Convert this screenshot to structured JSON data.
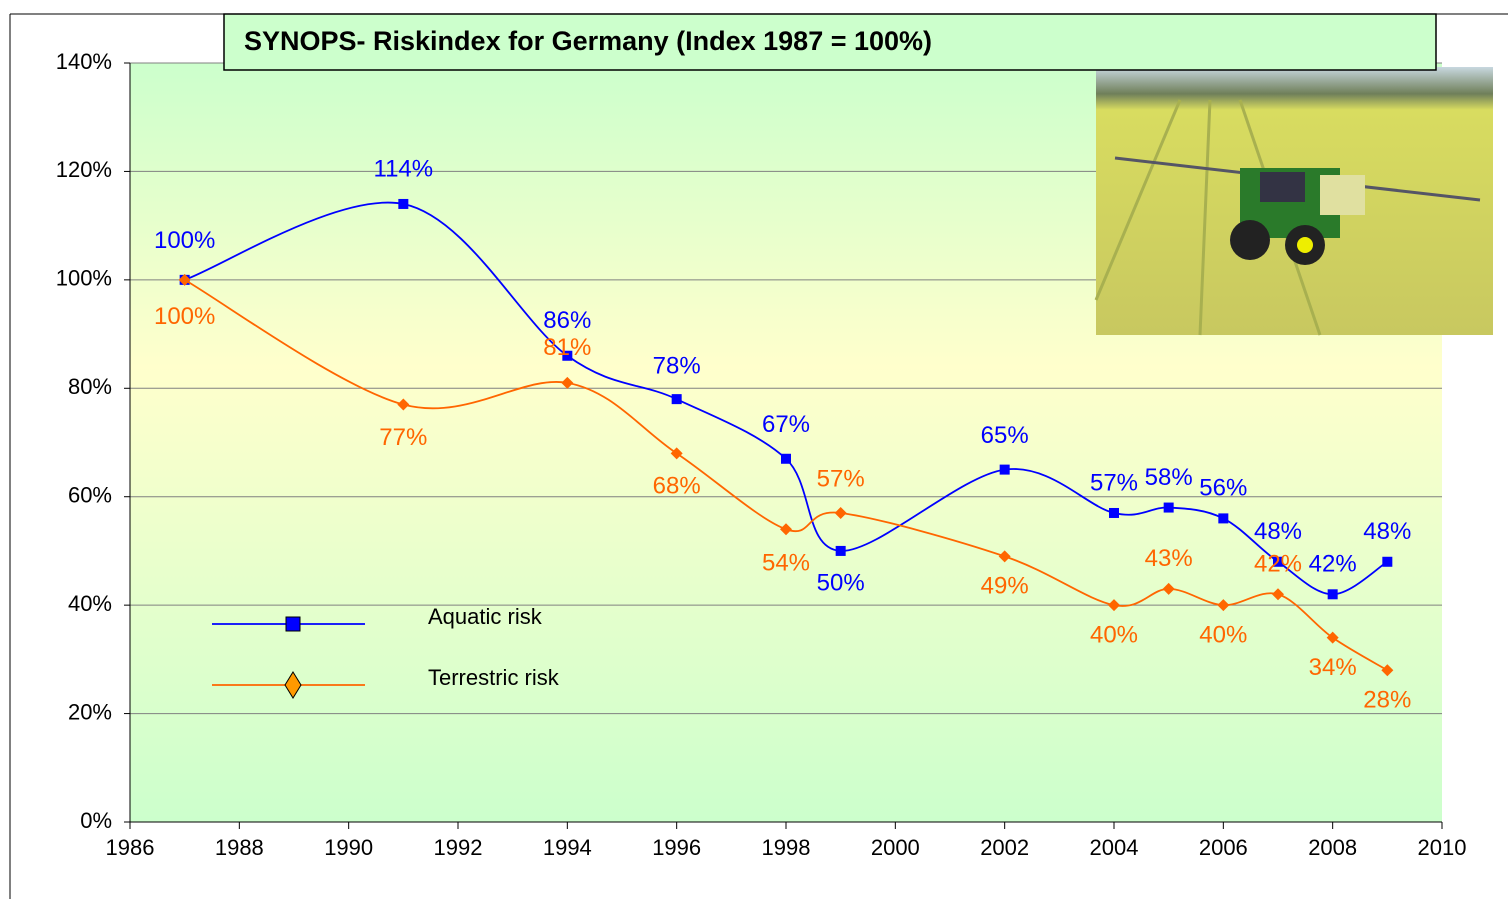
{
  "chart_data": {
    "type": "line",
    "title": "SYNOPS- Riskindex for Germany (Index 1987 = 100%)",
    "x": [
      1987,
      1991,
      1994,
      1996,
      1998,
      1999,
      2002,
      2004,
      2005,
      2006,
      2007,
      2008,
      2009
    ],
    "series": [
      {
        "name": "Aquatic risk",
        "color": "#0000ff",
        "values": [
          100,
          114,
          86,
          78,
          67,
          50,
          65,
          57,
          58,
          56,
          48,
          42,
          48
        ],
        "value_labels": [
          "100%",
          "114%",
          "86%",
          "78%",
          "67%",
          "50%",
          "65%",
          "57%",
          "58%",
          "56%",
          "48%",
          "42%",
          "48%"
        ]
      },
      {
        "name": "Terrestric risk",
        "color": "#ff6600",
        "values": [
          100,
          77,
          81,
          68,
          54,
          57,
          49,
          40,
          43,
          40,
          42,
          34,
          28
        ],
        "value_labels": [
          "100%",
          "77%",
          "81%",
          "68%",
          "54%",
          "57%",
          "49%",
          "40%",
          "43%",
          "40%",
          "42%",
          "34%",
          "28%"
        ]
      }
    ],
    "xlim": [
      1986,
      2010
    ],
    "xticks": [
      1986,
      1988,
      1990,
      1992,
      1994,
      1996,
      1998,
      2000,
      2002,
      2004,
      2006,
      2008,
      2010
    ],
    "ylim": [
      0,
      140
    ],
    "yticks": [
      {
        "value": 0,
        "label": "0%"
      },
      {
        "value": 20,
        "label": "20%"
      },
      {
        "value": 40,
        "label": "40%"
      },
      {
        "value": 60,
        "label": "60%"
      },
      {
        "value": 80,
        "label": "80%"
      },
      {
        "value": 100,
        "label": "100%"
      },
      {
        "value": 120,
        "label": "120%"
      },
      {
        "value": 140,
        "label": "140%"
      }
    ],
    "grid": true,
    "smooth": true,
    "legend": "lower left"
  }
}
